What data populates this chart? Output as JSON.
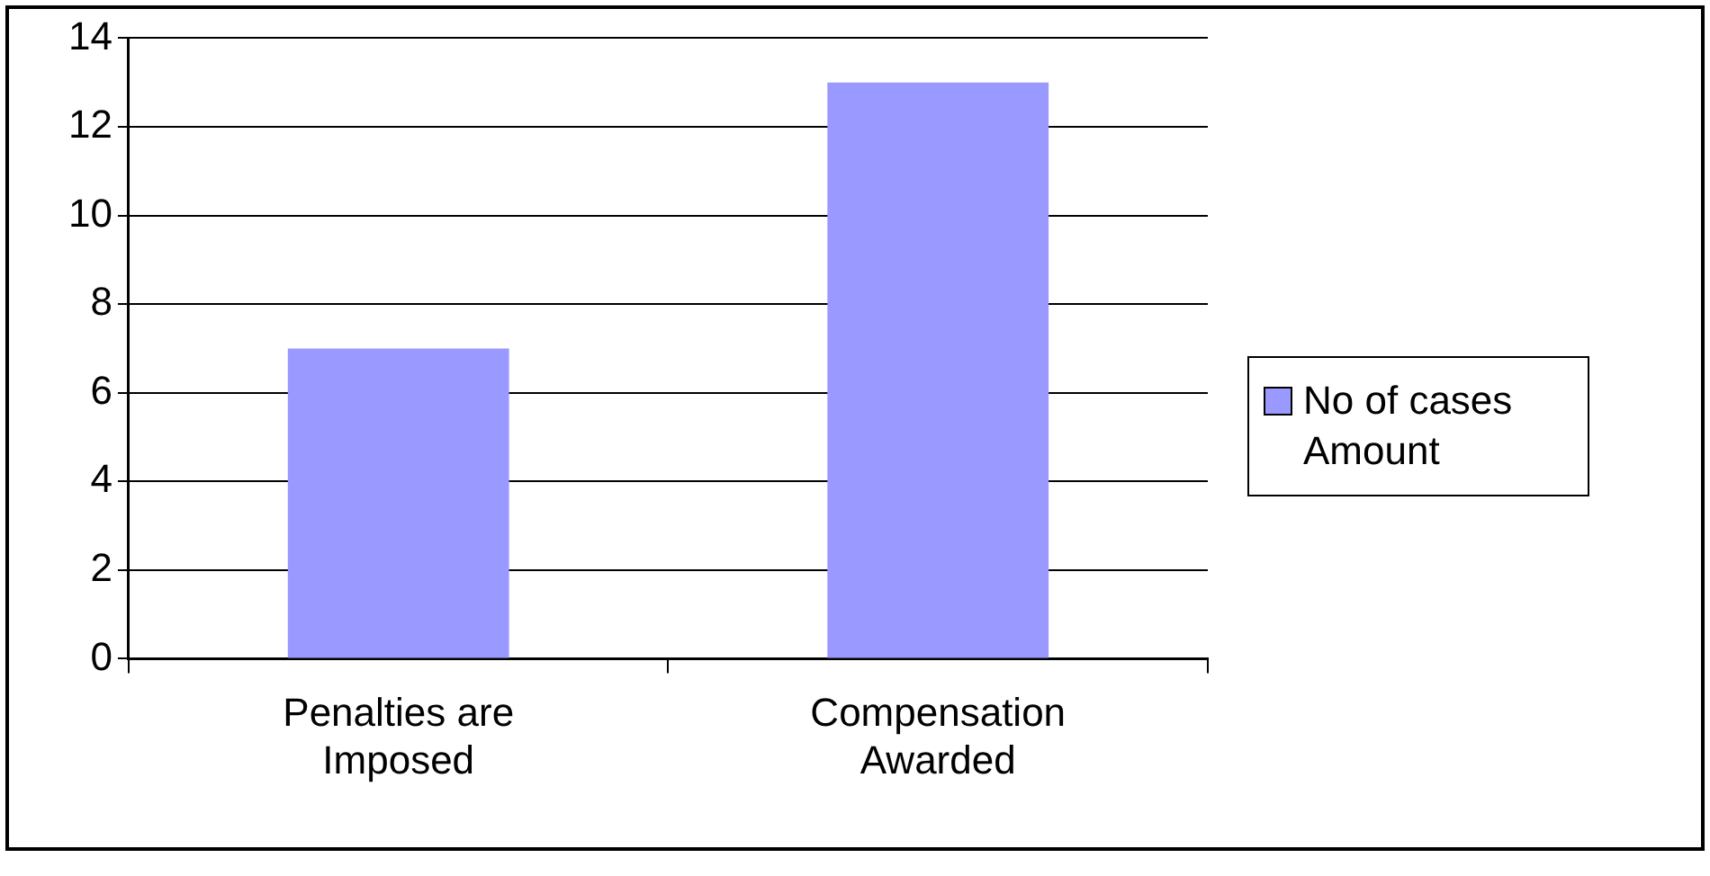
{
  "chart_data": {
    "type": "bar",
    "categories": [
      "Penalties are Imposed",
      "Compensation Awarded"
    ],
    "series": [
      {
        "name": "No of cases Amount",
        "color": "#9999ff",
        "values": [
          7,
          13
        ]
      }
    ],
    "ylim": [
      0,
      14
    ],
    "yticks": [
      0,
      2,
      4,
      6,
      8,
      10,
      12,
      14
    ],
    "grid": "y",
    "legend": "right"
  }
}
